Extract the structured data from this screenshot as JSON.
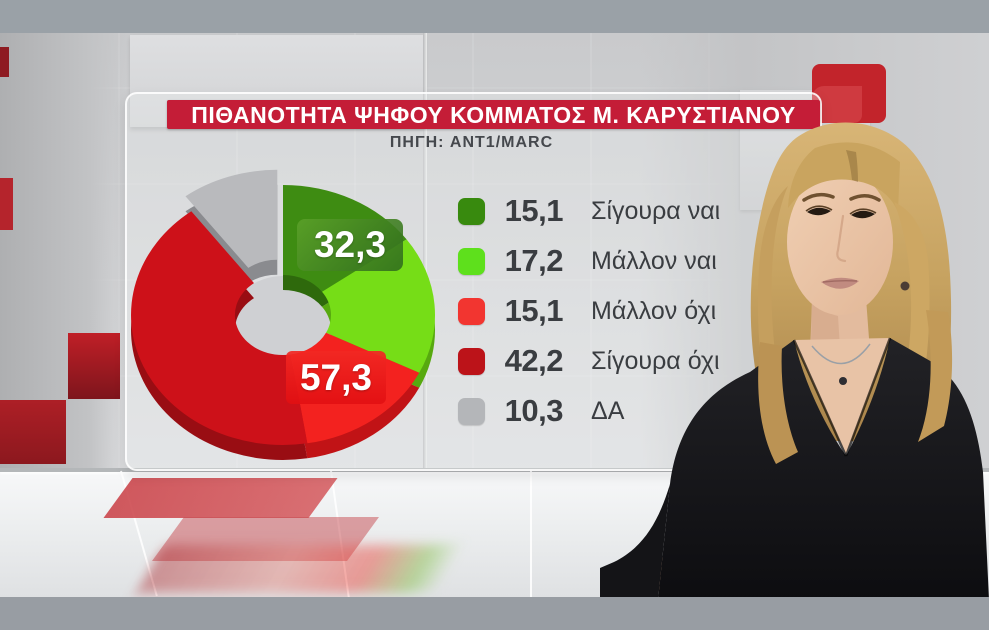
{
  "header": {
    "title": "ΠΙΘΑΝΟΤΗΤΑ ΨΗΦΟΥ ΚΟΜΜΑΤΟΣ Μ. ΚΑΡΥΣΤΙΑΝΟΥ",
    "source": "ΠΗΓΗ: ANT1/MARC",
    "banner_color": "#c41d37"
  },
  "chart_data": {
    "type": "pie",
    "style": "3d-donut",
    "title": "ΠΙΘΑΝΟΤΗΤΑ ΨΗΦΟΥ ΚΟΜΜΑΤΟΣ Μ. ΚΑΡΥΣΤΙΑΝΟΥ",
    "source": "ΠΗΓΗ: ANT1/MARC",
    "direction": "clockwise",
    "start_angle_deg": 0,
    "legend_position": "right",
    "slices": [
      {
        "label": "Σίγουρα ναι",
        "value": 15.1,
        "display": "15,1",
        "color": "#3e8c12",
        "side_color": "#2e690c",
        "legend_color": "#388a0e",
        "exploded": false
      },
      {
        "label": "Μάλλον ναι",
        "value": 17.2,
        "display": "17,2",
        "color": "#76dd17",
        "side_color": "#57a90f",
        "legend_color": "#5ee01c",
        "exploded": false
      },
      {
        "label": "Μάλλον όχι",
        "value": 15.1,
        "display": "15,1",
        "color": "#f3221f",
        "side_color": "#c11316",
        "legend_color": "#f23530",
        "exploded": false
      },
      {
        "label": "Σίγουρα όχι",
        "value": 42.2,
        "display": "42,2",
        "color": "#cd1119",
        "side_color": "#990d13",
        "legend_color": "#bc1319",
        "exploded": false
      },
      {
        "label": "ΔΑ",
        "value": 10.3,
        "display": "10,3",
        "color": "#b9babd",
        "side_color": "#8a8b8f",
        "legend_color": "#b4b6b9",
        "exploded": true
      }
    ],
    "callouts": [
      {
        "text": "32,3",
        "refers_to": "yes-total"
      },
      {
        "text": "57,3",
        "refers_to": "no-total"
      }
    ]
  }
}
